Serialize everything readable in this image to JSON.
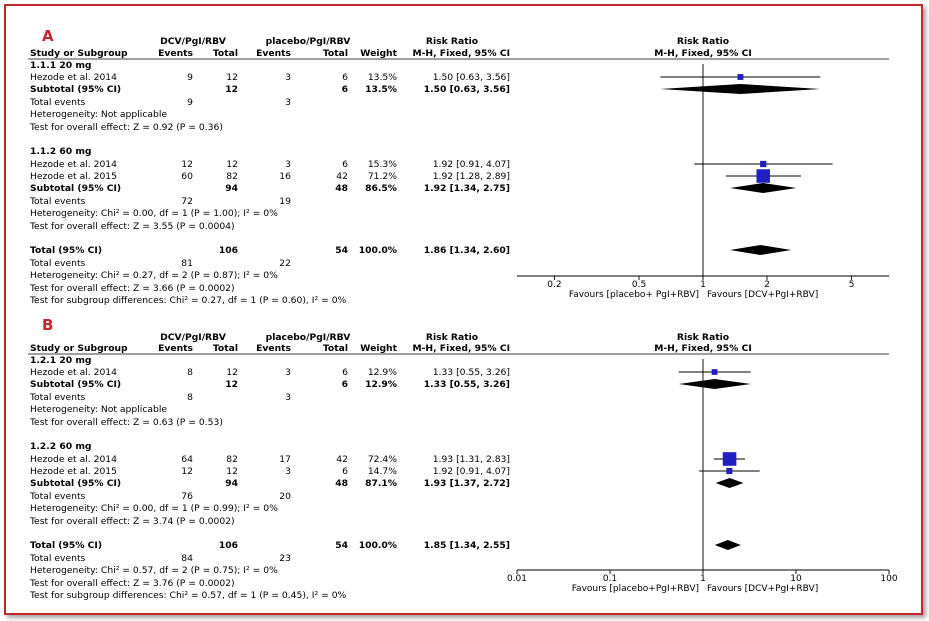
{
  "colors": {
    "accent": "#c0282d",
    "marker": "#1f1fc2",
    "text": "#000000",
    "axis": "#000000"
  },
  "chart_data": [
    {
      "type": "forest",
      "panel_label": "A",
      "group_headers": {
        "treatment": "DCV/PgI/RBV",
        "control": "placebo/PgI/RBV",
        "effect": "Risk Ratio",
        "plot": "Risk Ratio"
      },
      "column_headers": {
        "study": "Study or Subgroup",
        "t_events": "Events",
        "t_total": "Total",
        "c_events": "Events",
        "c_total": "Total",
        "weight": "Weight",
        "effect": "M-H, Fixed, 95% CI",
        "plot": "M-H, Fixed, 95% CI"
      },
      "subgroups": [
        {
          "title": "1.1.1 20 mg",
          "studies": [
            {
              "name": "Hezode et al. 2014",
              "t_events": "9",
              "t_total": "12",
              "c_events": "3",
              "c_total": "6",
              "weight": "13.5%",
              "ci_text": "1.50 [0.63, 3.56]",
              "rr": 1.5,
              "lo": 0.63,
              "hi": 3.56,
              "w": 13.5
            }
          ],
          "subtotal": {
            "label": "Subtotal (95% CI)",
            "t_total": "12",
            "c_total": "6",
            "weight": "13.5%",
            "ci_text": "1.50 [0.63, 3.56]",
            "rr": 1.5,
            "lo": 0.63,
            "hi": 3.56
          },
          "total_events": {
            "label": "Total events",
            "t": "9",
            "c": "3"
          },
          "heterogeneity": "Heterogeneity: Not applicable",
          "overall": "Test for overall effect: Z = 0.92 (P = 0.36)"
        },
        {
          "title": "1.1.2 60 mg",
          "studies": [
            {
              "name": "Hezode et al. 2014",
              "t_events": "12",
              "t_total": "12",
              "c_events": "3",
              "c_total": "6",
              "weight": "15.3%",
              "ci_text": "1.92 [0.91, 4.07]",
              "rr": 1.92,
              "lo": 0.91,
              "hi": 4.07,
              "w": 15.3
            },
            {
              "name": "Hezode et al. 2015",
              "t_events": "60",
              "t_total": "82",
              "c_events": "16",
              "c_total": "42",
              "weight": "71.2%",
              "ci_text": "1.92 [1.28, 2.89]",
              "rr": 1.92,
              "lo": 1.28,
              "hi": 2.89,
              "w": 71.2
            }
          ],
          "subtotal": {
            "label": "Subtotal (95% CI)",
            "t_total": "94",
            "c_total": "48",
            "weight": "86.5%",
            "ci_text": "1.92 [1.34, 2.75]",
            "rr": 1.92,
            "lo": 1.34,
            "hi": 2.75
          },
          "total_events": {
            "label": "Total events",
            "t": "72",
            "c": "19"
          },
          "heterogeneity": "Heterogeneity: Chi² = 0.00, df = 1 (P = 1.00); I² = 0%",
          "overall": "Test for overall effect: Z = 3.55 (P = 0.0004)"
        }
      ],
      "total": {
        "label": "Total (95% CI)",
        "t_total": "106",
        "c_total": "54",
        "weight": "100.0%",
        "ci_text": "1.86 [1.34, 2.60]",
        "rr": 1.86,
        "lo": 1.34,
        "hi": 2.6
      },
      "total_events": {
        "label": "Total events",
        "t": "81",
        "c": "22"
      },
      "heterogeneity": "Heterogeneity: Chi² = 0.27, df = 2 (P = 0.87); I² = 0%",
      "overall": "Test for overall effect: Z = 3.66 (P = 0.0002)",
      "subgroup_diff": "Test for subgroup differences: Chi² = 0.27, df = 1 (P = 0.60), I² = 0%",
      "axis": {
        "scale": "log",
        "xlim": [
          0.1333,
          7.5
        ],
        "ticks": [
          0.2,
          0.5,
          1,
          2,
          5
        ],
        "tick_labels": [
          "0.2",
          "0.5",
          "1",
          "2",
          "5"
        ],
        "left_label": "Favours [placebo+ PgI+RBV]",
        "right_label": "Favours [DCV+PgI+RBV]"
      }
    },
    {
      "type": "forest",
      "panel_label": "B",
      "group_headers": {
        "treatment": "DCV/PgI/RBV",
        "control": "placebo/PgI/RBV",
        "effect": "Risk Ratio",
        "plot": "Risk Ratio"
      },
      "column_headers": {
        "study": "Study or Subgroup",
        "t_events": "Events",
        "t_total": "Total",
        "c_events": "Events",
        "c_total": "Total",
        "weight": "Weight",
        "effect": "M-H, Fixed, 95% CI",
        "plot": "M-H, Fixed, 95% CI"
      },
      "subgroups": [
        {
          "title": "1.2.1 20 mg",
          "studies": [
            {
              "name": "Hezode et al. 2014",
              "t_events": "8",
              "t_total": "12",
              "c_events": "3",
              "c_total": "6",
              "weight": "12.9%",
              "ci_text": "1.33 [0.55, 3.26]",
              "rr": 1.33,
              "lo": 0.55,
              "hi": 3.26,
              "w": 12.9
            }
          ],
          "subtotal": {
            "label": "Subtotal (95% CI)",
            "t_total": "12",
            "c_total": "6",
            "weight": "12.9%",
            "ci_text": "1.33 [0.55, 3.26]",
            "rr": 1.33,
            "lo": 0.55,
            "hi": 3.26
          },
          "total_events": {
            "label": "Total events",
            "t": "8",
            "c": "3"
          },
          "heterogeneity": "Heterogeneity: Not applicable",
          "overall": "Test for overall effect: Z = 0.63 (P = 0.53)"
        },
        {
          "title": "1.2.2 60 mg",
          "studies": [
            {
              "name": "Hezode et al. 2014",
              "t_events": "64",
              "t_total": "82",
              "c_events": "17",
              "c_total": "42",
              "weight": "72.4%",
              "ci_text": "1.93 [1.31, 2.83]",
              "rr": 1.93,
              "lo": 1.31,
              "hi": 2.83,
              "w": 72.4
            },
            {
              "name": "Hezode et al. 2015",
              "t_events": "12",
              "t_total": "12",
              "c_events": "3",
              "c_total": "6",
              "weight": "14.7%",
              "ci_text": "1.92 [0.91, 4.07]",
              "rr": 1.92,
              "lo": 0.91,
              "hi": 4.07,
              "w": 14.7
            }
          ],
          "subtotal": {
            "label": "Subtotal (95% CI)",
            "t_total": "94",
            "c_total": "48",
            "weight": "87.1%",
            "ci_text": "1.93 [1.37, 2.72]",
            "rr": 1.93,
            "lo": 1.37,
            "hi": 2.72
          },
          "total_events": {
            "label": "Total events",
            "t": "76",
            "c": "20"
          },
          "heterogeneity": "Heterogeneity: Chi² = 0.00, df = 1 (P = 0.99); I² = 0%",
          "overall": "Test for overall effect: Z = 3.74 (P = 0.0002)"
        }
      ],
      "total": {
        "label": "Total (95% CI)",
        "t_total": "106",
        "c_total": "54",
        "weight": "100.0%",
        "ci_text": "1.85 [1.34, 2.55]",
        "rr": 1.85,
        "lo": 1.34,
        "hi": 2.55
      },
      "total_events": {
        "label": "Total events",
        "t": "84",
        "c": "23"
      },
      "heterogeneity": "Heterogeneity: Chi² = 0.57, df = 2 (P = 0.75); I² = 0%",
      "overall": "Test for overall effect: Z = 3.76 (P = 0.0002)",
      "subgroup_diff": "Test for subgroup differences: Chi² = 0.57, df = 1 (P = 0.45), I² = 0%",
      "axis": {
        "scale": "log",
        "xlim": [
          0.01,
          100
        ],
        "ticks": [
          0.01,
          0.1,
          1,
          10,
          100
        ],
        "tick_labels": [
          "0.01",
          "0.1",
          "1",
          "10",
          "100"
        ],
        "left_label": "Favours [placebo+PgI+RBV]",
        "right_label": "Favours [DCV+PgI+RBV]"
      }
    }
  ]
}
